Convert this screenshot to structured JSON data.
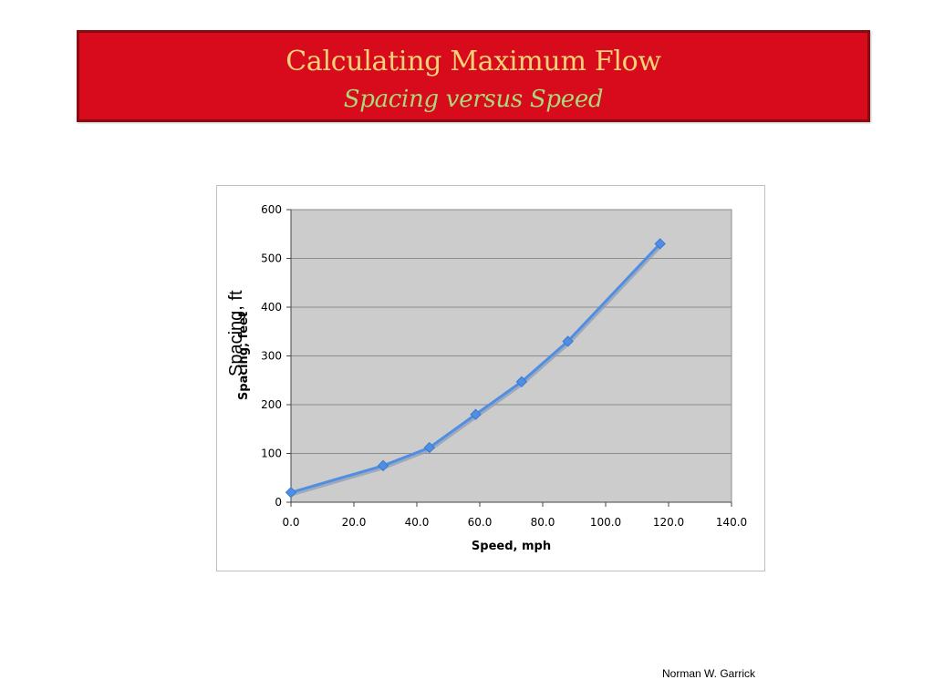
{
  "slide": {
    "title": "Calculating Maximum Flow",
    "subtitle": "Spacing versus Speed",
    "overlay_ylabel": "Spacing, ft",
    "footer": "Norman W. Garrick"
  },
  "chart_data": {
    "type": "line",
    "xlabel": "Speed, mph",
    "ylabel": "Spacing, feet",
    "xlim": [
      0,
      140
    ],
    "ylim": [
      0,
      600
    ],
    "xticks": [
      0,
      20,
      40,
      60,
      80,
      100,
      120,
      140
    ],
    "xtick_labels": [
      "0.0",
      "20.0",
      "40.0",
      "60.0",
      "80.0",
      "100.0",
      "120.0",
      "140.0"
    ],
    "yticks": [
      0,
      100,
      200,
      300,
      400,
      500,
      600
    ],
    "ytick_labels": [
      "0",
      "100",
      "200",
      "300",
      "400",
      "500",
      "600"
    ],
    "grid": "horizontal",
    "plot_background": "#cccccc",
    "series": [
      {
        "color": "#4f8ee3",
        "marker": "diamond",
        "x": [
          0,
          29.3,
          44,
          58.7,
          73.3,
          88,
          117.3
        ],
        "y": [
          20,
          75,
          112,
          180,
          247,
          330,
          530
        ]
      }
    ]
  }
}
